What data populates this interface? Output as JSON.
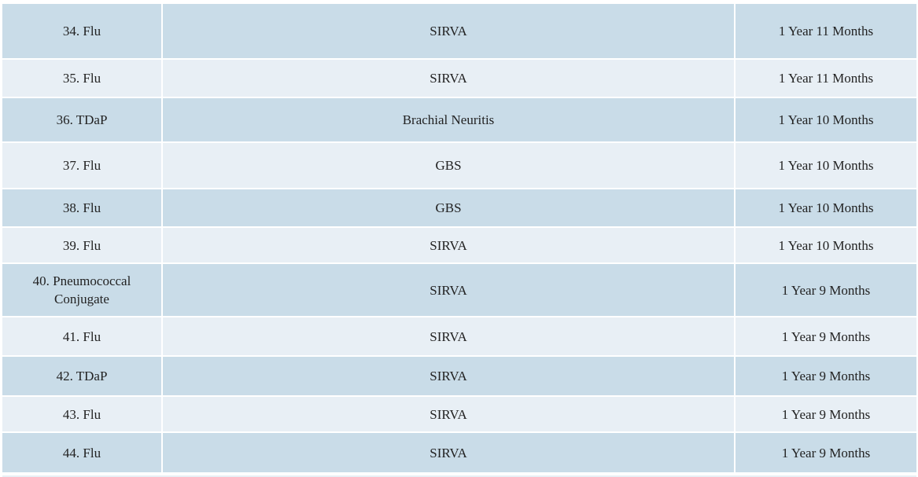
{
  "table": {
    "rows": [
      [
        "34. Flu",
        "SIRVA",
        "1 Year 11 Months"
      ],
      [
        "35. Flu",
        "SIRVA",
        "1 Year 11 Months"
      ],
      [
        "36. TDaP",
        "Brachial Neuritis",
        "1 Year 10 Months"
      ],
      [
        "37. Flu",
        "GBS",
        "1 Year 10 Months"
      ],
      [
        "38. Flu",
        "GBS",
        "1 Year 10 Months"
      ],
      [
        "39. Flu",
        "SIRVA",
        "1 Year 10 Months"
      ],
      [
        "40. Pneumococcal Conjugate",
        "SIRVA",
        "1 Year 9 Months"
      ],
      [
        "41. Flu",
        "SIRVA",
        "1 Year 9 Months"
      ],
      [
        "42. TDaP",
        "SIRVA",
        "1 Year 9 Months"
      ],
      [
        "43. Flu",
        "SIRVA",
        "1 Year 9 Months"
      ],
      [
        "44. Flu",
        "SIRVA",
        "1 Year 9 Months"
      ]
    ]
  }
}
